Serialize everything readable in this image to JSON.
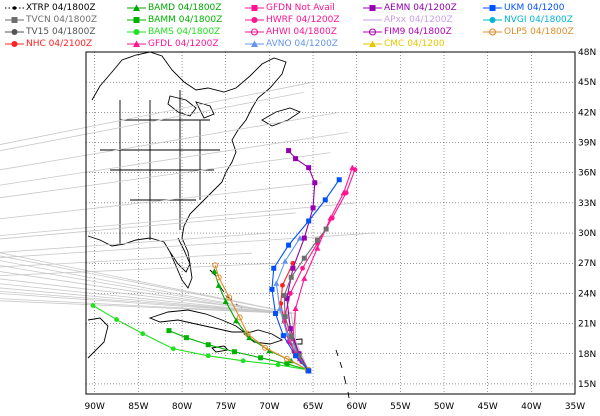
{
  "legend": [
    {
      "label": "XTRP 04/1800Z",
      "color": "#000000",
      "marker": "dot",
      "dashed": true
    },
    {
      "label": "TVCN 04/1800Z",
      "color": "#6e6e6e",
      "marker": "square",
      "dashed": false
    },
    {
      "label": "TV15 04/1800Z",
      "color": "#555555",
      "marker": "circle",
      "dashed": false
    },
    {
      "label": "NHC 04/2100Z",
      "color": "#ff2020",
      "marker": "circle",
      "dashed": false
    },
    {
      "label": "BAMD 04/1800Z",
      "color": "#00a800",
      "marker": "triangle",
      "dashed": false
    },
    {
      "label": "BAMM 04/1800Z",
      "color": "#00b400",
      "marker": "square",
      "dashed": false
    },
    {
      "label": "BAMS 04/1800Z",
      "color": "#22e022",
      "marker": "circle",
      "dashed": false
    },
    {
      "label": "GFDL 04/1200Z",
      "color": "#ff1493",
      "marker": "triangle",
      "dashed": false
    },
    {
      "label": "GFDN Not Avail",
      "color": "#ff1493",
      "marker": "square",
      "dashed": false
    },
    {
      "label": "HWRF 04/1200Z",
      "color": "#ff1493",
      "marker": "circle",
      "dashed": false
    },
    {
      "label": "AHWI 04/1800Z",
      "color": "#ff1493",
      "marker": "ring",
      "dashed": false
    },
    {
      "label": "AVNO 04/1200Z",
      "color": "#6495ed",
      "marker": "triangle",
      "dashed": false
    },
    {
      "label": "AEMN 04/1200Z",
      "color": "#9400b0",
      "marker": "square",
      "dashed": false
    },
    {
      "label": "APxx 04/1200Z",
      "color": "#c8a0e6",
      "marker": "none",
      "dashed": false
    },
    {
      "label": "FIM9 04/1800Z",
      "color": "#b400b4",
      "marker": "ring",
      "dashed": false
    },
    {
      "label": "CMC 04/1200",
      "color": "#e6c800",
      "marker": "triangle",
      "dashed": false
    },
    {
      "label": "UKM 04/1200",
      "color": "#0050ff",
      "marker": "square",
      "dashed": false
    },
    {
      "label": "NVGI 04/1800Z",
      "color": "#00b4d2",
      "marker": "circle",
      "dashed": false
    },
    {
      "label": "OLP5 04/1800Z",
      "color": "#e08c28",
      "marker": "ring",
      "dashed": false
    }
  ],
  "chart_data": {
    "type": "map",
    "xlim": [
      -91,
      -35
    ],
    "ylim": [
      14,
      48
    ],
    "x_tick_labels": [
      "90W",
      "85W",
      "80W",
      "75W",
      "70W",
      "65W",
      "60W",
      "55W",
      "50W",
      "45W",
      "40W",
      "35W"
    ],
    "y_tick_labels": [
      "15N",
      "18N",
      "21N",
      "24N",
      "27N",
      "30N",
      "33N",
      "36N",
      "39N",
      "42N",
      "45N",
      "48N"
    ],
    "tracks": [
      {
        "model": "NHC",
        "color": "#ff2020",
        "points": [
          [
            -65.5,
            16.3
          ],
          [
            -66.3,
            17.2
          ],
          [
            -67.2,
            18.2
          ],
          [
            -67.8,
            19.8
          ],
          [
            -68.3,
            21.2
          ],
          [
            -68.7,
            23.0
          ],
          [
            -68.5,
            24.8
          ],
          [
            -67.3,
            27.0
          ]
        ]
      },
      {
        "model": "BAMD",
        "color": "#00a800",
        "points": [
          [
            -65.6,
            16.4
          ],
          [
            -67.5,
            17.3
          ],
          [
            -70,
            18.3
          ],
          [
            -72.3,
            19.6
          ],
          [
            -73.8,
            21.3
          ],
          [
            -75.0,
            23.2
          ],
          [
            -75.8,
            24.8
          ],
          [
            -76.3,
            26.2
          ]
        ]
      },
      {
        "model": "BAMM",
        "color": "#00b400",
        "points": [
          [
            -65.6,
            16.4
          ],
          [
            -68,
            17.0
          ],
          [
            -71,
            17.6
          ],
          [
            -74,
            18.2
          ],
          [
            -77,
            18.9
          ],
          [
            -79.5,
            19.6
          ],
          [
            -81.5,
            20.3
          ]
        ]
      },
      {
        "model": "BAMS",
        "color": "#22e022",
        "points": [
          [
            -65.6,
            16.4
          ],
          [
            -69,
            16.9
          ],
          [
            -73,
            17.3
          ],
          [
            -77,
            17.8
          ],
          [
            -81,
            18.5
          ],
          [
            -84.5,
            20.0
          ],
          [
            -87.5,
            21.4
          ],
          [
            -90.2,
            22.8
          ]
        ]
      },
      {
        "model": "GFDL",
        "color": "#ff1493",
        "points": [
          [
            -65.5,
            16.3
          ],
          [
            -66.5,
            17.5
          ],
          [
            -67.3,
            19.5
          ],
          [
            -67.0,
            22.5
          ],
          [
            -66,
            25.5
          ],
          [
            -64.5,
            28.5
          ],
          [
            -63,
            31.5
          ],
          [
            -61.5,
            34.0
          ],
          [
            -60.5,
            36.5
          ]
        ]
      },
      {
        "model": "HWRF",
        "color": "#ff1493",
        "points": [
          [
            -65.5,
            16.3
          ],
          [
            -66.6,
            17.6
          ],
          [
            -67.8,
            19.2
          ],
          [
            -68.3,
            21.5
          ],
          [
            -67.6,
            24.0
          ],
          [
            -66.2,
            26.5
          ],
          [
            -64.5,
            29.0
          ],
          [
            -62.8,
            31.5
          ],
          [
            -61.2,
            34.0
          ],
          [
            -60.2,
            36.3
          ]
        ]
      },
      {
        "model": "AVNO",
        "color": "#6495ed",
        "points": [
          [
            -65.5,
            16.3
          ],
          [
            -66.8,
            18.0
          ],
          [
            -68.0,
            20.0
          ],
          [
            -68.8,
            22.5
          ],
          [
            -69.2,
            25.0
          ],
          [
            -68.2,
            27.2
          ],
          [
            -66.5,
            29.5
          ]
        ]
      },
      {
        "model": "AEMN",
        "color": "#9400b0",
        "points": [
          [
            -65.5,
            16.3
          ],
          [
            -66.6,
            18.0
          ],
          [
            -67.6,
            20.5
          ],
          [
            -68.0,
            23.5
          ],
          [
            -67.3,
            26.5
          ],
          [
            -66.0,
            29.5
          ],
          [
            -65.0,
            32.5
          ],
          [
            -64.8,
            35.0
          ],
          [
            -65.5,
            36.5
          ],
          [
            -67.0,
            37.4
          ],
          [
            -67.8,
            38.2
          ]
        ]
      },
      {
        "model": "TVCN",
        "color": "#6e6e6e",
        "points": [
          [
            -65.6,
            16.4
          ],
          [
            -66.6,
            17.8
          ],
          [
            -67.5,
            19.7
          ],
          [
            -68.2,
            21.7
          ],
          [
            -68.3,
            23.8
          ],
          [
            -67.5,
            25.6
          ],
          [
            -66.0,
            27.5
          ],
          [
            -64.5,
            29.3
          ],
          [
            -63.5,
            30.4
          ]
        ]
      },
      {
        "model": "OLP5",
        "color": "#e08c28",
        "points": [
          [
            -65.6,
            16.4
          ],
          [
            -68,
            17.5
          ],
          [
            -70.5,
            18.6
          ],
          [
            -72.5,
            20
          ],
          [
            -73.4,
            21.6
          ],
          [
            -74.6,
            23.6
          ],
          [
            -75.8,
            25.6
          ],
          [
            -76.2,
            26.8
          ]
        ]
      },
      {
        "model": "UKM",
        "color": "#0050ff",
        "points": [
          [
            -65.5,
            16.3
          ],
          [
            -67,
            17.8
          ],
          [
            -68.4,
            19.8
          ],
          [
            -69.3,
            22.0
          ],
          [
            -69.7,
            24.4
          ],
          [
            -69.5,
            26.5
          ],
          [
            -67.8,
            28.8
          ],
          [
            -65.5,
            31.2
          ],
          [
            -63.6,
            33.3
          ],
          [
            -62.0,
            35.3
          ]
        ]
      }
    ]
  }
}
